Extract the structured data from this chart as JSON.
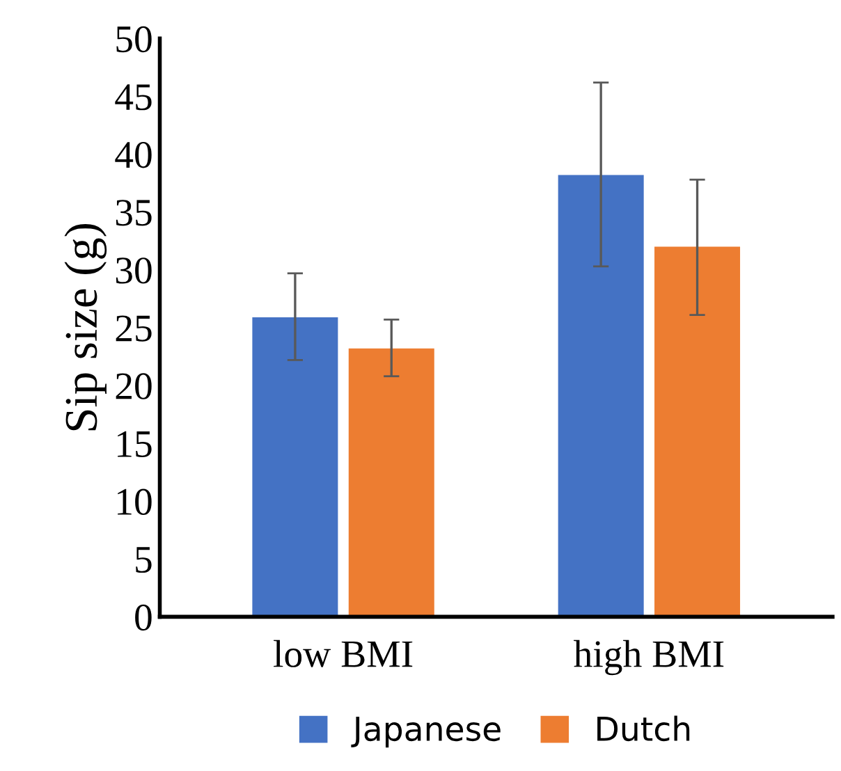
{
  "chart_data": {
    "type": "bar",
    "ylabel": "Sip size (g)",
    "categories": [
      "low BMI",
      "high BMI"
    ],
    "series": [
      {
        "name": "Japanese",
        "color": "#4472c4",
        "values": [
          25.9,
          38.2
        ],
        "errors": [
          [
            22.2,
            29.7
          ],
          [
            30.3,
            46.2
          ]
        ]
      },
      {
        "name": "Dutch",
        "color": "#ed7d31",
        "values": [
          23.2,
          32.0
        ],
        "errors": [
          [
            20.8,
            25.7
          ],
          [
            26.1,
            37.8
          ]
        ]
      }
    ],
    "ylim": [
      0,
      50
    ],
    "yticks": [
      0,
      5,
      10,
      15,
      20,
      25,
      30,
      35,
      40,
      45,
      50
    ],
    "grid": false,
    "legend": "bottom"
  }
}
